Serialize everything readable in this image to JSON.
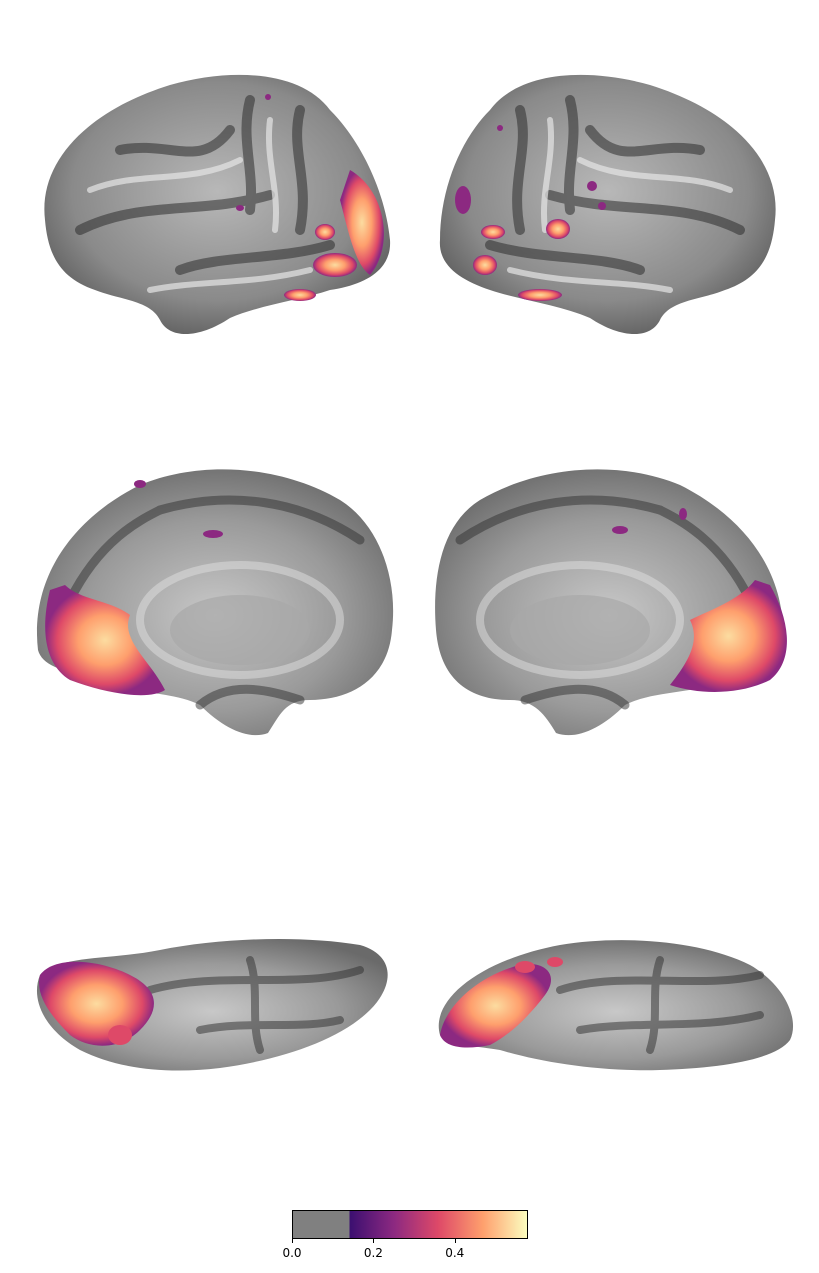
{
  "views": [
    {
      "id": "left-lateral",
      "hemisphere": "left",
      "view": "lateral"
    },
    {
      "id": "right-lateral",
      "hemisphere": "right",
      "view": "lateral"
    },
    {
      "id": "left-medial",
      "hemisphere": "left",
      "view": "medial"
    },
    {
      "id": "right-medial",
      "hemisphere": "right",
      "view": "medial"
    },
    {
      "id": "left-ventral",
      "hemisphere": "left",
      "view": "ventral"
    },
    {
      "id": "right-ventral",
      "hemisphere": "right",
      "view": "ventral"
    }
  ],
  "colorbar": {
    "ticks": [
      "0.0",
      "0.2",
      "0.4"
    ],
    "range": [
      0.0,
      0.58
    ],
    "threshold": 0.14,
    "below_threshold_color": "#808080",
    "colormap": "magma",
    "colors": [
      "#3b0f70",
      "#8c2981",
      "#de4968",
      "#fe9f6d",
      "#fcfdbf"
    ]
  }
}
